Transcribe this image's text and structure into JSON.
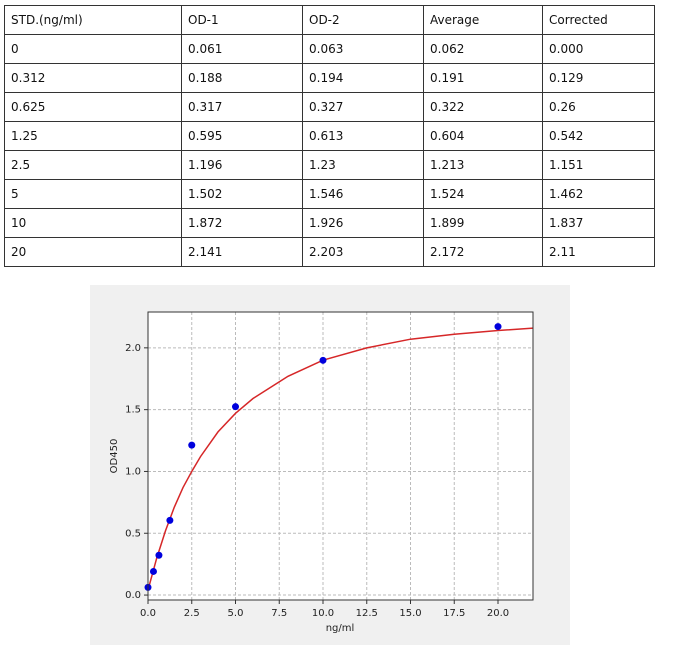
{
  "table": {
    "header": [
      "STD.(ng/ml)",
      "OD-1",
      "OD-2",
      "Average",
      "Corrected"
    ],
    "rows": [
      [
        "0",
        "0.061",
        "0.063",
        "0.062",
        "0.000"
      ],
      [
        "0.312",
        "0.188",
        "0.194",
        "0.191",
        "0.129"
      ],
      [
        "0.625",
        "0.317",
        "0.327",
        "0.322",
        "0.26"
      ],
      [
        "1.25",
        "0.595",
        "0.613",
        "0.604",
        "0.542"
      ],
      [
        "2.5",
        "1.196",
        "1.23",
        "1.213",
        "1.151"
      ],
      [
        "5",
        "1.502",
        "1.546",
        "1.524",
        "1.462"
      ],
      [
        "10",
        "1.872",
        "1.926",
        "1.899",
        "1.837"
      ],
      [
        "20",
        "2.141",
        "2.203",
        "2.172",
        "2.11"
      ]
    ]
  },
  "chart_data": {
    "type": "scatter",
    "x_label": "ng/ml",
    "y_label": "OD450",
    "x": [
      0,
      0.312,
      0.625,
      1.25,
      2.5,
      5,
      10,
      20
    ],
    "y": [
      0.062,
      0.191,
      0.322,
      0.604,
      1.213,
      1.524,
      1.899,
      2.172
    ],
    "color": "#0000dd",
    "fit_curve": {
      "color": "#d62728",
      "x": [
        0,
        0.5,
        1,
        1.5,
        2,
        2.5,
        3,
        4,
        5,
        6,
        8,
        10,
        12.5,
        15,
        17.5,
        20,
        22
      ],
      "y": [
        0.04,
        0.3,
        0.52,
        0.71,
        0.87,
        1.0,
        1.12,
        1.32,
        1.47,
        1.59,
        1.77,
        1.9,
        2.0,
        2.07,
        2.11,
        2.14,
        2.16
      ]
    },
    "xlim": [
      0,
      22
    ],
    "ylim": [
      -0.04,
      2.29
    ],
    "xticks": [
      {
        "value": 0,
        "label": "0.0"
      },
      {
        "value": 2.5,
        "label": "2.5"
      },
      {
        "value": 5,
        "label": "5.0"
      },
      {
        "value": 7.5,
        "label": "7.5"
      },
      {
        "value": 10,
        "label": "10.0"
      },
      {
        "value": 12.5,
        "label": "12.5"
      },
      {
        "value": 15,
        "label": "15.0"
      },
      {
        "value": 17.5,
        "label": "17.5"
      },
      {
        "value": 20,
        "label": "20.0"
      }
    ],
    "yticks": [
      {
        "value": 0,
        "label": "0.0"
      },
      {
        "value": 0.5,
        "label": "0.5"
      },
      {
        "value": 1,
        "label": "1.0"
      },
      {
        "value": 1.5,
        "label": "1.5"
      },
      {
        "value": 2,
        "label": "2.0"
      }
    ],
    "grid": true
  }
}
